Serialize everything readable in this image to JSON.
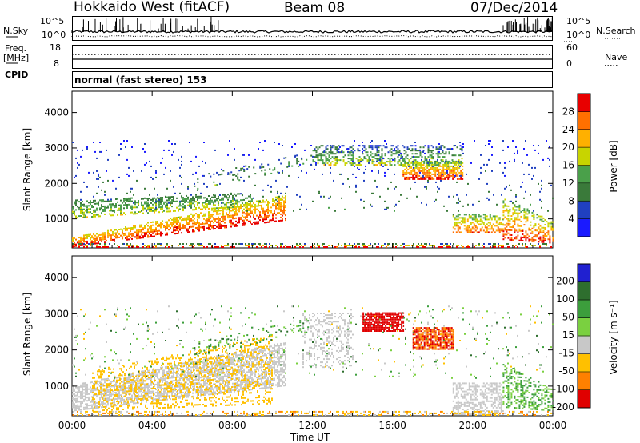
{
  "header": {
    "radar": "Hokkaido West (fitACF)",
    "beam": "Beam 08",
    "date": "07/Dec/2014"
  },
  "noise_panel": {
    "left_label": "N.Sky",
    "right_label": "N.Search",
    "left_ticks": [
      "10^5",
      "10^0"
    ],
    "right_ticks": [
      "10^5",
      "10^0"
    ]
  },
  "freq_panel": {
    "left_label_1": "Freq.",
    "left_label_2": "[MHz]",
    "right_label": "Nave",
    "left_ticks": [
      "18",
      "8"
    ],
    "right_ticks": [
      "60",
      "0"
    ]
  },
  "cpid_panel": {
    "label": "CPID",
    "value": "normal (fast stereo) 153"
  },
  "chart_data": [
    {
      "type": "heatmap",
      "name": "power",
      "ylabel": "Slant Range [km]",
      "xlabel": "Time UT",
      "ylim": [
        180,
        4600
      ],
      "yticks": [
        "1000",
        "2000",
        "3000",
        "4000"
      ],
      "ytick_values": [
        1000,
        2000,
        3000,
        4000
      ],
      "xticks": [
        "00:00",
        "04:00",
        "08:00",
        "12:00",
        "16:00",
        "20:00",
        "00:00"
      ],
      "xtick_values_hours": [
        0,
        4,
        8,
        12,
        16,
        20,
        24
      ],
      "colorbar_label": "Power [dB]",
      "colorbar_ticks": [
        "4",
        "8",
        "12",
        "16",
        "20",
        "24",
        "28"
      ],
      "colorbar_tick_values": [
        4,
        8,
        12,
        16,
        20,
        24,
        28
      ],
      "colorbar_range": [
        0,
        32
      ],
      "colorbar_colors": [
        "#1a1aff",
        "#2040c0",
        "#3a7a3a",
        "#4aa04a",
        "#c8d400",
        "#ffb000",
        "#ff7000",
        "#e80000"
      ]
    },
    {
      "type": "heatmap",
      "name": "velocity",
      "ylabel": "Slant Range [km]",
      "xlabel": "Time UT",
      "ylim": [
        180,
        4600
      ],
      "yticks": [
        "1000",
        "2000",
        "3000",
        "4000"
      ],
      "ytick_values": [
        1000,
        2000,
        3000,
        4000
      ],
      "xticks": [
        "00:00",
        "04:00",
        "08:00",
        "12:00",
        "16:00",
        "20:00",
        "00:00"
      ],
      "xtick_values_hours": [
        0,
        4,
        8,
        12,
        16,
        20,
        24
      ],
      "colorbar_label": "Velocity [m s⁻¹]",
      "colorbar_ticks": [
        "200",
        "100",
        "50",
        "15",
        "-15",
        "-50",
        "-100",
        "-200"
      ],
      "colorbar_colors": [
        "#2020d0",
        "#2e6e2e",
        "#3c9e3c",
        "#7ad040",
        "#c8c8c8",
        "#ffc000",
        "#ff8000",
        "#e00000"
      ]
    }
  ],
  "colors": {
    "ground_scatter": "#c8c8c8"
  }
}
